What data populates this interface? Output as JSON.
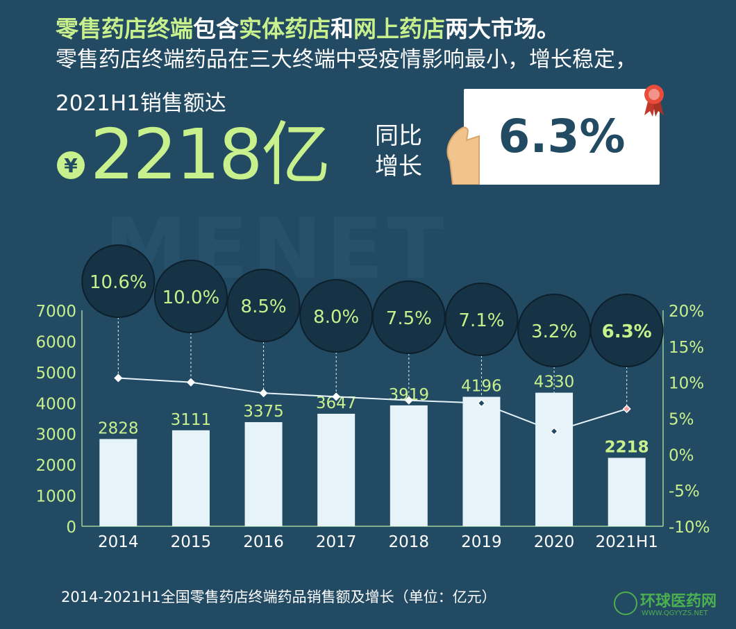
{
  "header": {
    "line1_parts": [
      {
        "text": "零售药店终端",
        "hl": true
      },
      {
        "text": "包含",
        "hl": false
      },
      {
        "text": "实体药店",
        "hl": true
      },
      {
        "text": "和",
        "hl": false
      },
      {
        "text": "网上药店",
        "hl": true
      },
      {
        "text": "两大市场。",
        "hl": false
      }
    ],
    "line2": "零售药店终端药品在三大终端中受疫情影响最小，增长稳定，",
    "sales_label": "2021H1销售额达",
    "currency_symbol": "¥",
    "big_number": "2218亿",
    "yoy_label_1": "同比",
    "yoy_label_2": "增长",
    "yoy_value": "6.3%"
  },
  "watermark": "MENET",
  "chart_data": {
    "type": "bar",
    "categories": [
      "2014",
      "2015",
      "2016",
      "2017",
      "2018",
      "2019",
      "2020",
      "2021H1"
    ],
    "series": [
      {
        "values": [
          2828,
          3111,
          3375,
          3647,
          3919,
          4196,
          4330,
          2218
        ],
        "axis": "left",
        "kind": "bar"
      },
      {
        "values": [
          10.6,
          10.0,
          8.5,
          8.0,
          7.5,
          7.1,
          3.2,
          6.3
        ],
        "axis": "right",
        "kind": "line"
      }
    ],
    "bar_labels": [
      "2828",
      "3111",
      "3375",
      "3647",
      "3919",
      "4196",
      "4330",
      "2218"
    ],
    "growth_labels": [
      "10.6%",
      "10.0%",
      "8.5%",
      "8.0%",
      "7.5%",
      "7.1%",
      "3.2%",
      "6.3%"
    ],
    "y_left": {
      "ticks": [
        "0",
        "1000",
        "2000",
        "3000",
        "4000",
        "5000",
        "6000",
        "7000"
      ],
      "range": [
        0,
        7000
      ]
    },
    "y_right": {
      "ticks": [
        "-10%",
        "-5%",
        "0%",
        "5%",
        "10%",
        "15%",
        "20%"
      ],
      "range": [
        -10,
        20
      ]
    },
    "highlight_index": 7,
    "colors": {
      "bar": "#e6f4fa",
      "line": "#e6f4fa",
      "label": "#c8f08c",
      "highlight_marker": "#f4a0a0",
      "bubble": "#163345"
    }
  },
  "caption": "2014-2021H1全国零售药店终端药品销售额及增长（单位：亿元）",
  "logo": {
    "text": "环球医药网",
    "url": "WWW.QGYYZS.NET"
  }
}
